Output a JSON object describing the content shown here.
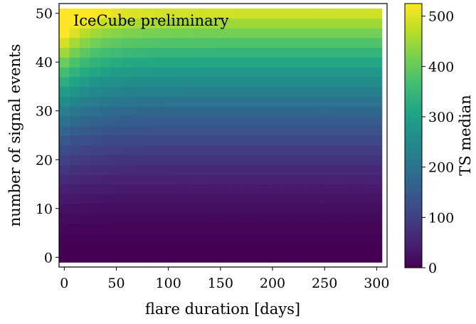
{
  "chart_data": {
    "type": "heatmap",
    "title": "",
    "xlabel": "flare duration [days]",
    "ylabel": "number of signal events",
    "colorbar_label": "TS median",
    "annotation": "IceCube preliminary",
    "annotation_color": "#e8000b",
    "colormap": "viridis",
    "xlim": [
      -5,
      310
    ],
    "ylim": [
      -2,
      52
    ],
    "x_ticks": [
      0,
      50,
      100,
      150,
      200,
      250,
      300
    ],
    "y_ticks": [
      0,
      10,
      20,
      30,
      40,
      50
    ],
    "colorbar_range": [
      0,
      525
    ],
    "colorbar_ticks": [
      0,
      100,
      200,
      300,
      400,
      500
    ],
    "grid": {
      "x_start": 0,
      "x_step": 10,
      "x_count": 31,
      "y_start": 0,
      "y_step": 2,
      "y_count": 26
    },
    "value_model": "TS median approx. 0.195 * N^2 * (1 + 0.3 * exp(-t/25))"
  }
}
